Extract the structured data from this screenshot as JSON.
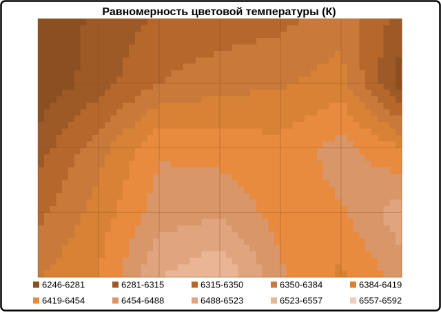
{
  "chart_data": {
    "type": "contour",
    "title": "Равномерность  цветовой температуры (К)",
    "z": [
      [
        6250,
        6290,
        6320,
        6330,
        6340,
        6370,
        6300
      ],
      [
        6250,
        6300,
        6350,
        6370,
        6380,
        6400,
        6260
      ],
      [
        6300,
        6370,
        6450,
        6440,
        6430,
        6470,
        6420
      ],
      [
        6340,
        6400,
        6470,
        6480,
        6440,
        6450,
        6510
      ],
      [
        6380,
        6420,
        6520,
        6560,
        6460,
        6410,
        6470
      ]
    ],
    "levels": [
      6246,
      6281,
      6315,
      6350,
      6384,
      6419,
      6454,
      6488,
      6523,
      6557,
      6592
    ],
    "series": [
      {
        "name": "6246-6281",
        "color": "#8b4f22"
      },
      {
        "name": "6281-6315",
        "color": "#9e5a26"
      },
      {
        "name": "6315-6350",
        "color": "#b5672c"
      },
      {
        "name": "6350-6384",
        "color": "#c97a3b"
      },
      {
        "name": "6384-6419",
        "color": "#d88236"
      },
      {
        "name": "6419-6454",
        "color": "#e88b3e"
      },
      {
        "name": "6454-6488",
        "color": "#d99668"
      },
      {
        "name": "6488-6523",
        "color": "#e0a47e"
      },
      {
        "name": "6523-6557",
        "color": "#e9b595"
      },
      {
        "name": "6557-6592",
        "color": "#f1cbb5"
      }
    ]
  }
}
